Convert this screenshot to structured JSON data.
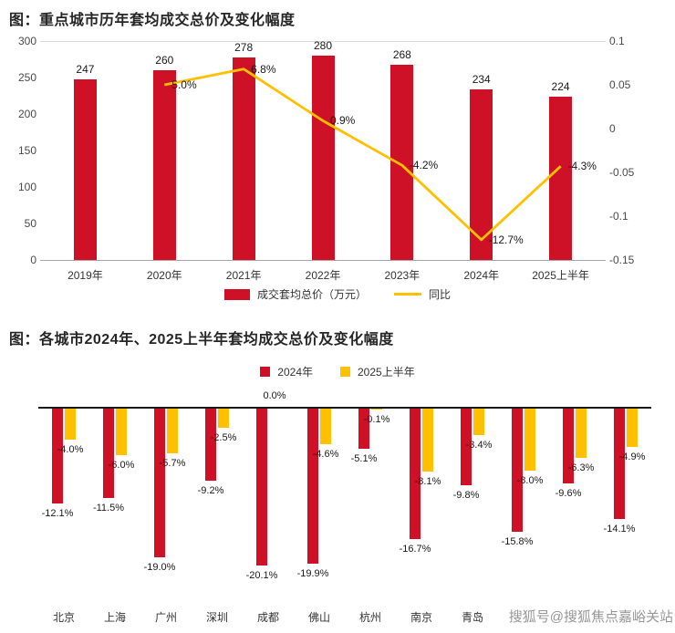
{
  "page": {
    "watermark": "搜狐号@搜狐焦点嘉峪关站"
  },
  "colors": {
    "bar_red": "#ce1126",
    "line_yellow": "#ffc000"
  },
  "chart_data": [
    {
      "type": "bar",
      "title": "图：重点城市历年套均成交总价及变化幅度",
      "categories": [
        "2019年",
        "2020年",
        "2021年",
        "2022年",
        "2023年",
        "2024年",
        "2025上半年"
      ],
      "bar_series": {
        "name": "成交套均总价（万元）",
        "values": [
          247,
          260,
          278,
          280,
          268,
          234,
          224
        ]
      },
      "line_series": {
        "name": "同比",
        "x_indices": [
          1,
          2,
          3,
          4,
          5,
          6
        ],
        "values": [
          0.05,
          0.068,
          0.009,
          -0.042,
          -0.127,
          -0.043
        ],
        "labels": [
          "5.0%",
          "6.8%",
          "0.9%",
          "-4.2%",
          "-12.7%",
          "-4.3%"
        ]
      },
      "left_axis": {
        "ticks": [
          "300",
          "250",
          "200",
          "150",
          "100",
          "50",
          "0"
        ],
        "max": 300,
        "min": 0
      },
      "right_axis": {
        "ticks": [
          "0.1",
          "0.05",
          "0",
          "-0.05",
          "-0.1",
          "-0.15"
        ],
        "max": 0.1,
        "min": -0.15
      },
      "legend_position": "bottom",
      "grid": "off"
    },
    {
      "type": "bar",
      "title": "图：各城市2024年、2025上半年套均成交总价及变化幅度",
      "categories": [
        "北京",
        "上海",
        "广州",
        "深圳",
        "成都",
        "佛山",
        "杭州",
        "南京",
        "青岛",
        "",
        "",
        ""
      ],
      "series": [
        {
          "name": "2024年",
          "values": [
            -12.1,
            -11.5,
            -19.0,
            -9.2,
            -20.1,
            -19.9,
            -5.1,
            -16.7,
            -9.8,
            -15.8,
            -9.6,
            -14.1
          ],
          "labels": [
            "-12.1%",
            "-11.5%",
            "-19.0%",
            "-9.2%",
            "-20.1%",
            "-19.9%",
            "-5.1%",
            "-16.7%",
            "-9.8%",
            "-15.8%",
            "-9.6%",
            "-14.1%"
          ]
        },
        {
          "name": "2025上半年",
          "values": [
            -4.0,
            -6.0,
            -5.7,
            -2.5,
            0.0,
            -4.6,
            -0.1,
            -8.1,
            -3.4,
            -8.0,
            -6.3,
            -4.9
          ],
          "labels": [
            "-4.0%",
            "-6.0%",
            "-5.7%",
            "-2.5%",
            "0.0%",
            "-4.6%",
            "-0.1%",
            "-8.1%",
            "-3.4%",
            "-8.0%",
            "-6.3%",
            "-4.9%"
          ]
        }
      ],
      "ylim": [
        -22,
        0
      ],
      "legend_position": "top",
      "grid": "off"
    }
  ]
}
